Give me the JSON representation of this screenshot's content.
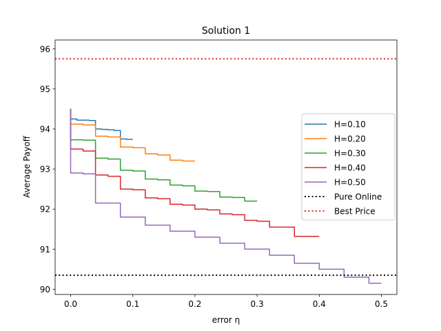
{
  "chart_data": {
    "type": "line",
    "title": "Solution 1",
    "xlabel": "error η",
    "ylabel": "Average Payoff",
    "xlim": [
      -0.025,
      0.525
    ],
    "ylim": [
      89.87,
      96.22
    ],
    "x_ticks": [
      0.0,
      0.1,
      0.2,
      0.3,
      0.4,
      0.5
    ],
    "x_tick_labels": [
      "0.0",
      "0.1",
      "0.2",
      "0.3",
      "0.4",
      "0.5"
    ],
    "y_ticks": [
      90,
      91,
      92,
      93,
      94,
      95,
      96
    ],
    "y_tick_labels": [
      "90",
      "91",
      "92",
      "93",
      "94",
      "95",
      "96"
    ],
    "grid": false,
    "legend_position": "center-right",
    "series": [
      {
        "name": "H=0.10",
        "color": "#1f77b4",
        "style": "solid",
        "initial": 94.5,
        "start": 94.25,
        "x": [
          0.0,
          0.01,
          0.02,
          0.03,
          0.04,
          0.05,
          0.06,
          0.07,
          0.08,
          0.09,
          0.1
        ],
        "y": [
          94.25,
          94.22,
          94.22,
          94.21,
          94.0,
          93.99,
          93.98,
          93.96,
          93.75,
          93.74,
          93.74
        ]
      },
      {
        "name": "H=0.20",
        "color": "#ff7f0e",
        "style": "solid",
        "initial": 94.5,
        "start": 94.12,
        "x": [
          0.0,
          0.02,
          0.04,
          0.06,
          0.08,
          0.1,
          0.12,
          0.14,
          0.16,
          0.18,
          0.2
        ],
        "y": [
          94.12,
          94.1,
          93.82,
          93.8,
          93.55,
          93.53,
          93.38,
          93.35,
          93.22,
          93.2,
          93.2
        ]
      },
      {
        "name": "H=0.30",
        "color": "#2ca02c",
        "style": "solid",
        "initial": 94.5,
        "start": 93.73,
        "x": [
          0.0,
          0.02,
          0.04,
          0.06,
          0.08,
          0.1,
          0.12,
          0.14,
          0.16,
          0.18,
          0.2,
          0.22,
          0.24,
          0.26,
          0.28,
          0.3
        ],
        "y": [
          93.73,
          93.72,
          93.27,
          93.25,
          92.97,
          92.95,
          92.75,
          92.73,
          92.6,
          92.58,
          92.45,
          92.44,
          92.3,
          92.29,
          92.2,
          92.2
        ]
      },
      {
        "name": "H=0.40",
        "color": "#d62728",
        "style": "solid",
        "initial": 94.5,
        "start": 93.5,
        "x": [
          0.0,
          0.02,
          0.04,
          0.06,
          0.08,
          0.1,
          0.12,
          0.14,
          0.16,
          0.18,
          0.2,
          0.22,
          0.24,
          0.26,
          0.28,
          0.3,
          0.32,
          0.34,
          0.36,
          0.38,
          0.4
        ],
        "y": [
          93.5,
          93.45,
          92.85,
          92.82,
          92.5,
          92.48,
          92.28,
          92.26,
          92.12,
          92.1,
          92.0,
          91.98,
          91.88,
          91.86,
          91.72,
          91.7,
          91.55,
          91.55,
          91.32,
          91.32,
          91.32
        ]
      },
      {
        "name": "H=0.50",
        "color": "#9467bd",
        "style": "solid",
        "initial": 94.5,
        "start": 92.9,
        "x": [
          0.0,
          0.02,
          0.04,
          0.06,
          0.08,
          0.1,
          0.12,
          0.14,
          0.16,
          0.18,
          0.2,
          0.22,
          0.24,
          0.26,
          0.28,
          0.3,
          0.32,
          0.34,
          0.36,
          0.38,
          0.4,
          0.42,
          0.44,
          0.46,
          0.48,
          0.5
        ],
        "y": [
          92.9,
          92.88,
          92.15,
          92.15,
          91.8,
          91.8,
          91.6,
          91.6,
          91.45,
          91.45,
          91.3,
          91.3,
          91.15,
          91.15,
          91.0,
          91.0,
          90.85,
          90.85,
          90.65,
          90.65,
          90.5,
          90.5,
          90.3,
          90.3,
          90.15,
          90.15
        ]
      },
      {
        "name": "Pure Online",
        "color": "#000000",
        "style": "dotted",
        "x": [
          -0.025,
          0.525
        ],
        "y": [
          90.35,
          90.35
        ]
      },
      {
        "name": "Best Price",
        "color": "#d62728",
        "style": "dotted",
        "x": [
          -0.025,
          0.525
        ],
        "y": [
          95.75,
          95.75
        ]
      }
    ]
  }
}
